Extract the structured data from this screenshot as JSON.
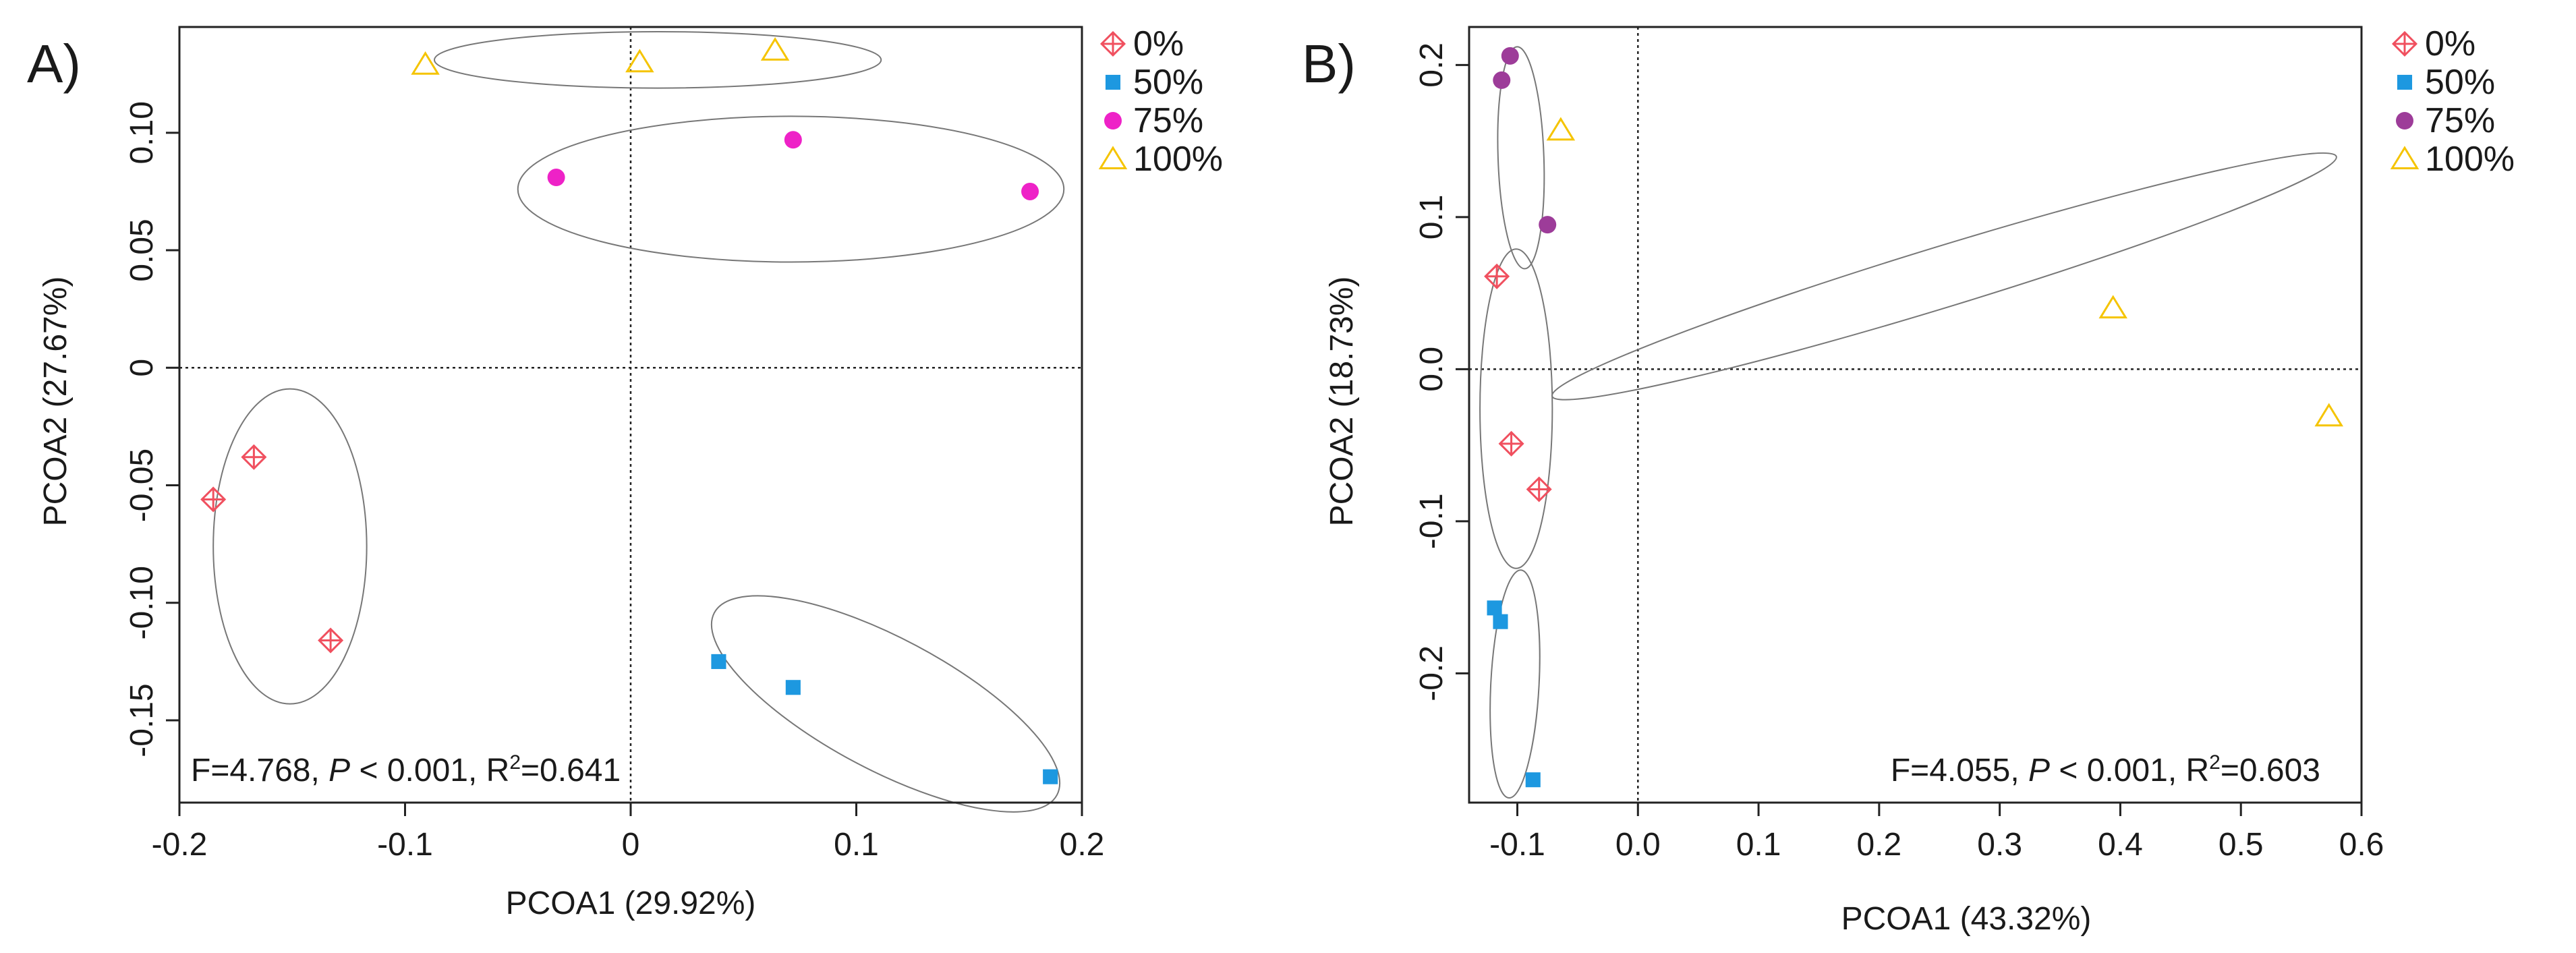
{
  "chart_data": [
    {
      "type": "scatter",
      "panel_label": "A)",
      "xlabel": "PCOA1 (29.92%)",
      "ylabel": "PCOA2 (27.67%)",
      "xlim": [
        -0.2,
        0.2
      ],
      "ylim": [
        -0.185,
        0.145
      ],
      "xticks": [
        -0.2,
        -0.1,
        0,
        0.1,
        0.2
      ],
      "xtick_labels": [
        "-0.2",
        "-0.1",
        "0",
        "0.1",
        "0.2"
      ],
      "yticks": [
        -0.15,
        -0.1,
        -0.05,
        0,
        0.05,
        0.1
      ],
      "ytick_labels": [
        "-0.15",
        "-0.10",
        "-0.05",
        "0",
        "0.05",
        "0.10"
      ],
      "reference_lines": {
        "x": 0,
        "y": 0,
        "style": "dotted"
      },
      "annotation": {
        "pre": "F=4.768, ",
        "p_symbol": "P",
        "mid": " < 0.001, R",
        "sup": "2",
        "post": "=0.641"
      },
      "legend_position": "top-right outside",
      "series": [
        {
          "name": "0%",
          "marker": "diamond-cross",
          "color": "#f0505f",
          "x": [
            -0.185,
            -0.167,
            -0.133
          ],
          "y": [
            -0.056,
            -0.038,
            -0.116
          ],
          "ellipse": {
            "cx": -0.151,
            "cy": -0.076,
            "rx": 0.034,
            "ry": 0.067,
            "angle_deg": 0
          }
        },
        {
          "name": "50%",
          "marker": "square",
          "color": "#1d98e0",
          "x": [
            0.039,
            0.072,
            0.186
          ],
          "y": [
            -0.125,
            -0.136,
            -0.174
          ],
          "ellipse": {
            "cx": 0.113,
            "cy": -0.143,
            "rx": 0.086,
            "ry": 0.028,
            "angle_deg": -28
          }
        },
        {
          "name": "75%",
          "marker": "circle",
          "color": "#ee22c7",
          "x": [
            -0.033,
            0.072,
            0.177
          ],
          "y": [
            0.081,
            0.097,
            0.075
          ],
          "ellipse": {
            "cx": 0.071,
            "cy": 0.076,
            "rx": 0.121,
            "ry": 0.031,
            "angle_deg": 0
          }
        },
        {
          "name": "100%",
          "marker": "triangle",
          "color": "#f5c400",
          "x": [
            -0.091,
            0.004,
            0.064
          ],
          "y": [
            0.129,
            0.13,
            0.135
          ],
          "ellipse": {
            "cx": 0.012,
            "cy": 0.131,
            "rx": 0.099,
            "ry": 0.012,
            "angle_deg": 0
          }
        }
      ]
    },
    {
      "type": "scatter",
      "panel_label": "B)",
      "xlabel": "PCOA1 (43.32%)",
      "ylabel": "PCOA2 (18.73%)",
      "xlim": [
        -0.14,
        0.6
      ],
      "ylim": [
        -0.285,
        0.225
      ],
      "xticks": [
        -0.1,
        0,
        0.1,
        0.2,
        0.3,
        0.4,
        0.5,
        0.6
      ],
      "xtick_labels": [
        "-0.1",
        "0.0",
        "0.1",
        "0.2",
        "0.3",
        "0.4",
        "0.5",
        "0.6"
      ],
      "yticks": [
        -0.2,
        -0.1,
        0,
        0.1,
        0.2
      ],
      "ytick_labels": [
        "-0.2",
        "-0.1",
        "0.0",
        "0.1",
        "0.2"
      ],
      "reference_lines": {
        "x": 0,
        "y": 0,
        "style": "dotted"
      },
      "annotation": {
        "pre": "F=4.055, ",
        "p_symbol": "P",
        "mid": " < 0.001, R",
        "sup": "2",
        "post": "=0.603"
      },
      "legend_position": "top-right outside",
      "series": [
        {
          "name": "0%",
          "marker": "diamond-cross",
          "color": "#f0505f",
          "x": [
            -0.117,
            -0.105,
            -0.082
          ],
          "y": [
            0.061,
            -0.049,
            -0.079
          ],
          "ellipse": {
            "cx": -0.101,
            "cy": -0.026,
            "rx": 0.03,
            "ry": 0.105,
            "angle_deg": 0
          }
        },
        {
          "name": "50%",
          "marker": "square",
          "color": "#1d98e0",
          "x": [
            -0.119,
            -0.114,
            -0.087
          ],
          "y": [
            -0.157,
            -0.166,
            -0.27
          ],
          "ellipse": {
            "cx": -0.102,
            "cy": -0.207,
            "rx": 0.02,
            "ry": 0.075,
            "angle_deg": -3
          }
        },
        {
          "name": "75%",
          "marker": "circle",
          "color": "#9d3c99",
          "x": [
            -0.113,
            -0.106,
            -0.075
          ],
          "y": [
            0.19,
            0.206,
            0.095
          ],
          "ellipse": {
            "cx": -0.097,
            "cy": 0.139,
            "rx": 0.019,
            "ry": 0.073,
            "angle_deg": 2
          }
        },
        {
          "name": "100%",
          "marker": "triangle",
          "color": "#f5c400",
          "x": [
            -0.064,
            0.394,
            0.573
          ],
          "y": [
            0.157,
            0.04,
            -0.031
          ],
          "ellipse": {
            "cx": 0.254,
            "cy": 0.061,
            "rx": 0.34,
            "ry": 0.02,
            "angle_deg": 17
          }
        }
      ]
    }
  ]
}
